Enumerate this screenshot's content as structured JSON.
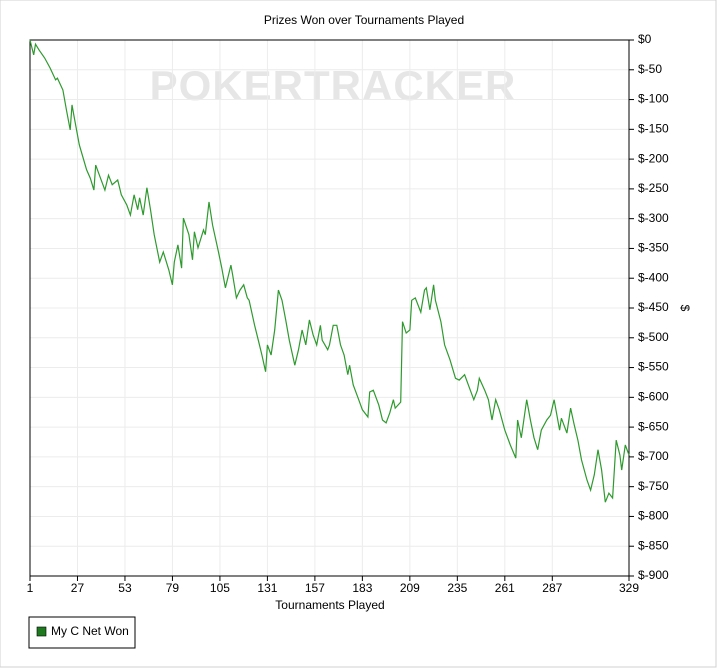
{
  "chart_data": {
    "type": "line",
    "title": "Prizes Won over Tournaments Played",
    "watermark": "POKERTRACKER",
    "x_label": "Tournaments Played",
    "y_label": "$",
    "xlim": [
      1,
      329
    ],
    "xticks": [
      1,
      27,
      53,
      79,
      105,
      131,
      157,
      183,
      209,
      235,
      261,
      287,
      329
    ],
    "ylim": [
      -900,
      0
    ],
    "yticks": [
      {
        "value": 0,
        "label": "$0"
      },
      {
        "value": -50,
        "label": "$-50"
      },
      {
        "value": -100,
        "label": "$-100"
      },
      {
        "value": -150,
        "label": "$-150"
      },
      {
        "value": -200,
        "label": "$-200"
      },
      {
        "value": -250,
        "label": "$-250"
      },
      {
        "value": -300,
        "label": "$-300"
      },
      {
        "value": -350,
        "label": "$-350"
      },
      {
        "value": -400,
        "label": "$-400"
      },
      {
        "value": -450,
        "label": "$-450"
      },
      {
        "value": -500,
        "label": "$-500"
      },
      {
        "value": -550,
        "label": "$-550"
      },
      {
        "value": -600,
        "label": "$-600"
      },
      {
        "value": -650,
        "label": "$-650"
      },
      {
        "value": -700,
        "label": "$-700"
      },
      {
        "value": -750,
        "label": "$-750"
      },
      {
        "value": -800,
        "label": "$-800"
      },
      {
        "value": -850,
        "label": "$-850"
      },
      {
        "value": -900,
        "label": "$-900"
      }
    ],
    "grid": true,
    "y_axis_side": "right",
    "legend": "bottom-left",
    "x": [
      1,
      3,
      4,
      6,
      9,
      12,
      15,
      16,
      19,
      21,
      23,
      24,
      25,
      28,
      32,
      34,
      36,
      37,
      39,
      42,
      44,
      46,
      49,
      51,
      54,
      56,
      58,
      60,
      61,
      63,
      65,
      67,
      69,
      72,
      74,
      77,
      79,
      80,
      82,
      84,
      85,
      88,
      90,
      91,
      93,
      96,
      97,
      99,
      101,
      104,
      106,
      108,
      111,
      112,
      114,
      116,
      118,
      120,
      121,
      124,
      126,
      128,
      130,
      131,
      133,
      135,
      137,
      139,
      141,
      143,
      146,
      148,
      150,
      152,
      154,
      156,
      158,
      160,
      161,
      164,
      165,
      167,
      169,
      171,
      173,
      175,
      176,
      178,
      181,
      183,
      186,
      187,
      189,
      192,
      194,
      196,
      198,
      200,
      201,
      204,
      205,
      207,
      209,
      210,
      212,
      215,
      217,
      218,
      220,
      222,
      223,
      226,
      228,
      231,
      234,
      236,
      239,
      241,
      244,
      246,
      247,
      250,
      252,
      254,
      256,
      258,
      261,
      264,
      267,
      268,
      270,
      273,
      275,
      277,
      279,
      281,
      284,
      286,
      288,
      291,
      292,
      295,
      297,
      299,
      301,
      303,
      306,
      308,
      310,
      312,
      314,
      316,
      318,
      320,
      322,
      324,
      325,
      327,
      329
    ],
    "series": [
      {
        "name": "My C Net Won",
        "color": "#2e9a2e",
        "legend_color": "#1f7a1f",
        "values": [
          0,
          -25,
          -7,
          -17,
          -30,
          -47,
          -67,
          -64,
          -84,
          -118,
          -151,
          -109,
          -126,
          -176,
          -218,
          -232,
          -252,
          -210,
          -227,
          -252,
          -227,
          -243,
          -235,
          -260,
          -277,
          -294,
          -260,
          -285,
          -265,
          -294,
          -248,
          -285,
          -327,
          -373,
          -356,
          -386,
          -411,
          -373,
          -344,
          -383,
          -299,
          -327,
          -369,
          -322,
          -349,
          -319,
          -327,
          -272,
          -311,
          -353,
          -383,
          -416,
          -378,
          -395,
          -433,
          -420,
          -411,
          -433,
          -437,
          -479,
          -504,
          -529,
          -557,
          -512,
          -529,
          -487,
          -420,
          -437,
          -470,
          -504,
          -546,
          -520,
          -487,
          -512,
          -470,
          -495,
          -512,
          -479,
          -504,
          -520,
          -512,
          -479,
          -479,
          -512,
          -529,
          -562,
          -546,
          -579,
          -604,
          -621,
          -633,
          -591,
          -588,
          -613,
          -638,
          -643,
          -626,
          -604,
          -618,
          -608,
          -473,
          -492,
          -487,
          -437,
          -433,
          -457,
          -420,
          -416,
          -453,
          -411,
          -437,
          -473,
          -512,
          -537,
          -568,
          -571,
          -562,
          -579,
          -604,
          -588,
          -568,
          -588,
          -604,
          -638,
          -604,
          -621,
          -655,
          -680,
          -702,
          -638,
          -668,
          -604,
          -638,
          -668,
          -688,
          -655,
          -638,
          -630,
          -604,
          -655,
          -635,
          -660,
          -618,
          -646,
          -672,
          -705,
          -739,
          -756,
          -730,
          -688,
          -722,
          -776,
          -761,
          -769,
          -672,
          -697,
          -722,
          -680,
          -697
        ]
      }
    ]
  }
}
